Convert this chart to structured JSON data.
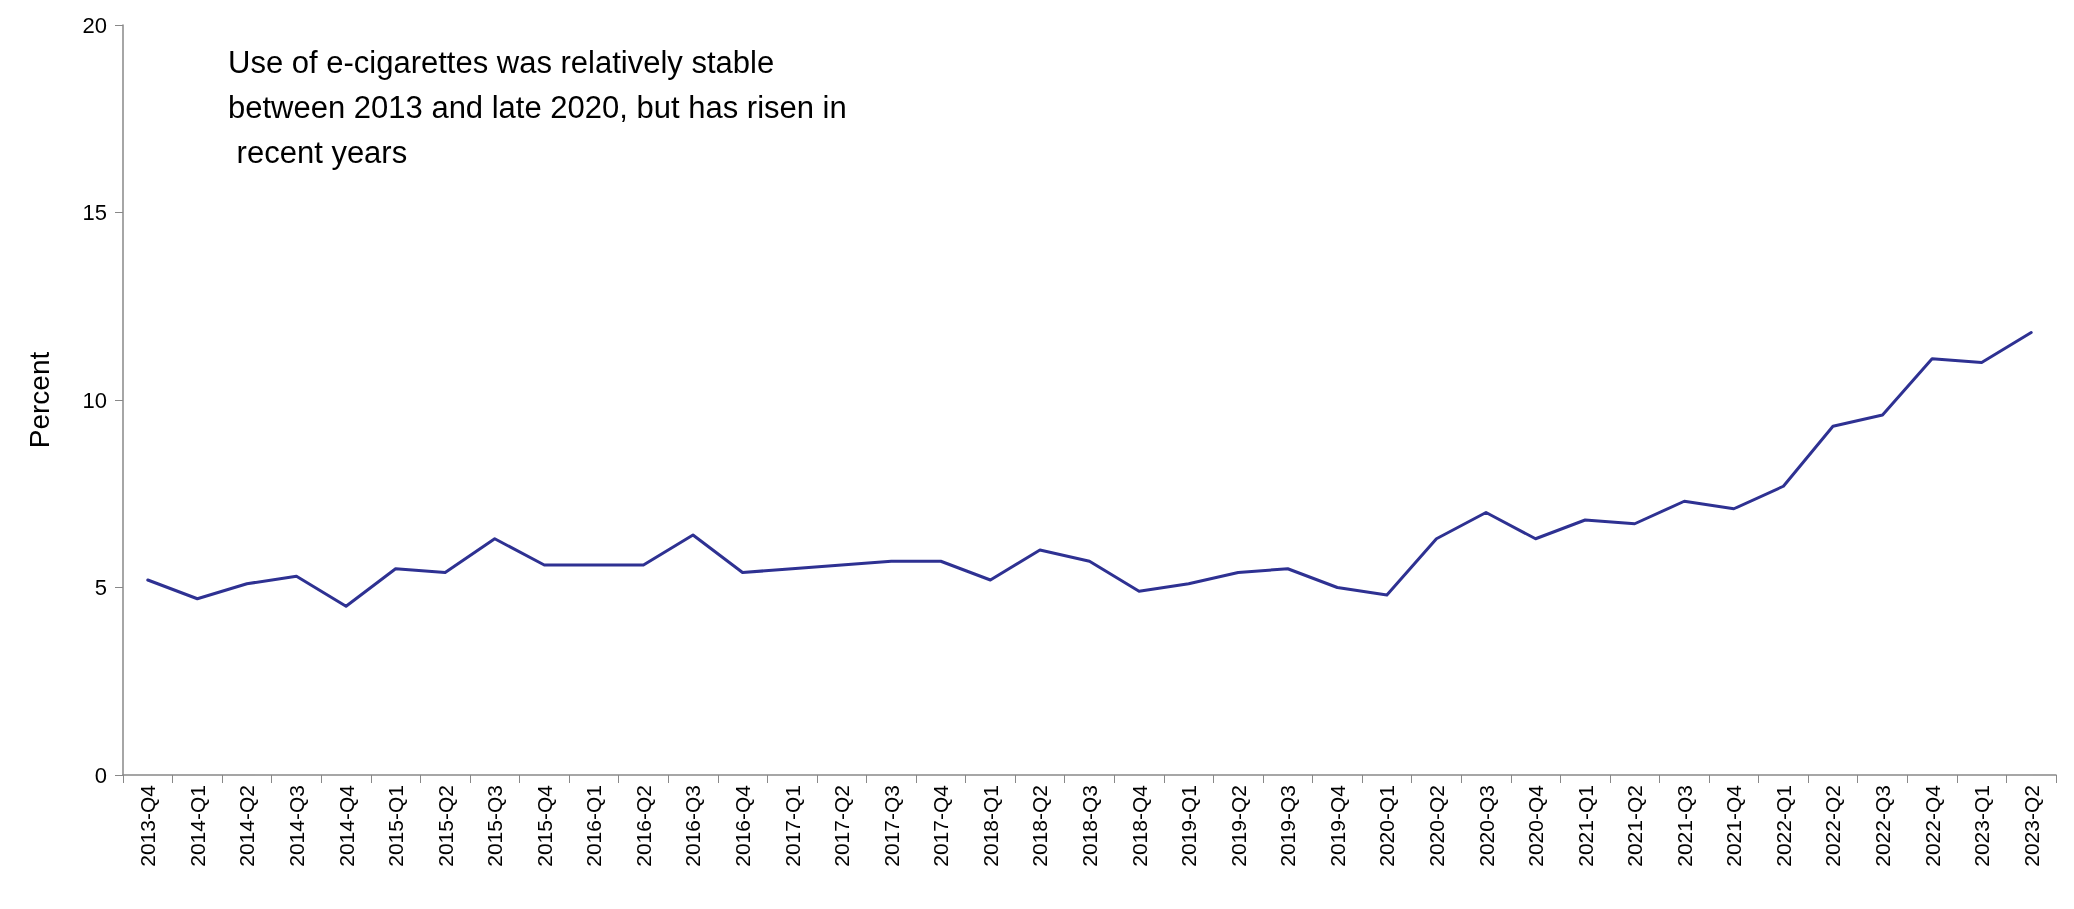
{
  "chart_data": {
    "type": "line",
    "ylabel": "Percent",
    "annotations": [
      "Use of e-cigarettes was relatively stable between 2013 and late 2020, but has risen in recent years"
    ],
    "categories": [
      "2013-Q4",
      "2014-Q1",
      "2014-Q2",
      "2014-Q3",
      "2014-Q4",
      "2015-Q1",
      "2015-Q2",
      "2015-Q3",
      "2015-Q4",
      "2016-Q1",
      "2016-Q2",
      "2016-Q3",
      "2016-Q4",
      "2017-Q1",
      "2017-Q2",
      "2017-Q3",
      "2017-Q4",
      "2018-Q1",
      "2018-Q2",
      "2018-Q3",
      "2018-Q4",
      "2019-Q1",
      "2019-Q2",
      "2019-Q3",
      "2019-Q4",
      "2020-Q1",
      "2020-Q2",
      "2020-Q3",
      "2020-Q4",
      "2021-Q1",
      "2021-Q2",
      "2021-Q3",
      "2021-Q4",
      "2022-Q1",
      "2022-Q2",
      "2022-Q3",
      "2022-Q4",
      "2023-Q1",
      "2023-Q2"
    ],
    "series": [
      {
        "color": "#2e3192",
        "values": [
          5.2,
          4.7,
          5.1,
          5.3,
          4.5,
          5.5,
          5.4,
          6.3,
          5.6,
          5.6,
          5.6,
          6.4,
          5.4,
          5.5,
          5.6,
          5.7,
          5.7,
          5.2,
          6.0,
          5.7,
          4.9,
          5.1,
          5.4,
          5.5,
          5.0,
          4.8,
          6.3,
          7.0,
          6.3,
          6.8,
          6.7,
          7.3,
          7.1,
          7.7,
          9.3,
          9.6,
          11.1,
          11.0,
          11.8
        ]
      }
    ],
    "ylim": [
      0,
      20
    ],
    "yticks": [
      0,
      5,
      10,
      15,
      20
    ],
    "grid": false,
    "marker": "none",
    "line_style": "solid"
  }
}
